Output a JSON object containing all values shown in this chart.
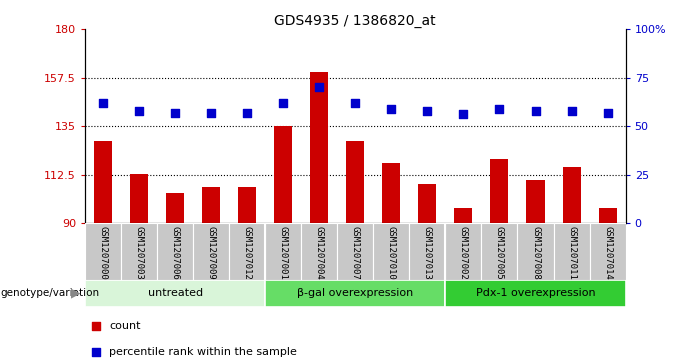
{
  "title": "GDS4935 / 1386820_at",
  "samples": [
    "GSM1207000",
    "GSM1207003",
    "GSM1207006",
    "GSM1207009",
    "GSM1207012",
    "GSM1207001",
    "GSM1207004",
    "GSM1207007",
    "GSM1207010",
    "GSM1207013",
    "GSM1207002",
    "GSM1207005",
    "GSM1207008",
    "GSM1207011",
    "GSM1207014"
  ],
  "counts": [
    128,
    113,
    104,
    107,
    107,
    135,
    160,
    128,
    118,
    108,
    97,
    120,
    110,
    116,
    97
  ],
  "percentiles": [
    62,
    58,
    57,
    57,
    57,
    62,
    70,
    62,
    59,
    58,
    56,
    59,
    58,
    58,
    57
  ],
  "groups": [
    {
      "label": "untreated",
      "start": 0,
      "end": 5,
      "color": "#d9f5d9"
    },
    {
      "label": "β-gal overexpression",
      "start": 5,
      "end": 10,
      "color": "#66dd66"
    },
    {
      "label": "Pdx-1 overexpression",
      "start": 10,
      "end": 15,
      "color": "#33cc33"
    }
  ],
  "ylim_left": [
    90,
    180
  ],
  "ylim_right": [
    0,
    100
  ],
  "yticks_left": [
    90,
    112.5,
    135,
    157.5,
    180
  ],
  "yticks_right": [
    0,
    25,
    50,
    75,
    100
  ],
  "ytick_labels_left": [
    "90",
    "112.5",
    "135",
    "157.5",
    "180"
  ],
  "ytick_labels_right": [
    "0",
    "25",
    "50",
    "75",
    "100%"
  ],
  "bar_color": "#cc0000",
  "dot_color": "#0000cc",
  "bar_width": 0.5,
  "dot_size": 35,
  "left_tick_color": "#cc0000",
  "right_tick_color": "#0000cc",
  "xtick_bg_color": "#c8c8c8",
  "hgrid_color": "#000000"
}
